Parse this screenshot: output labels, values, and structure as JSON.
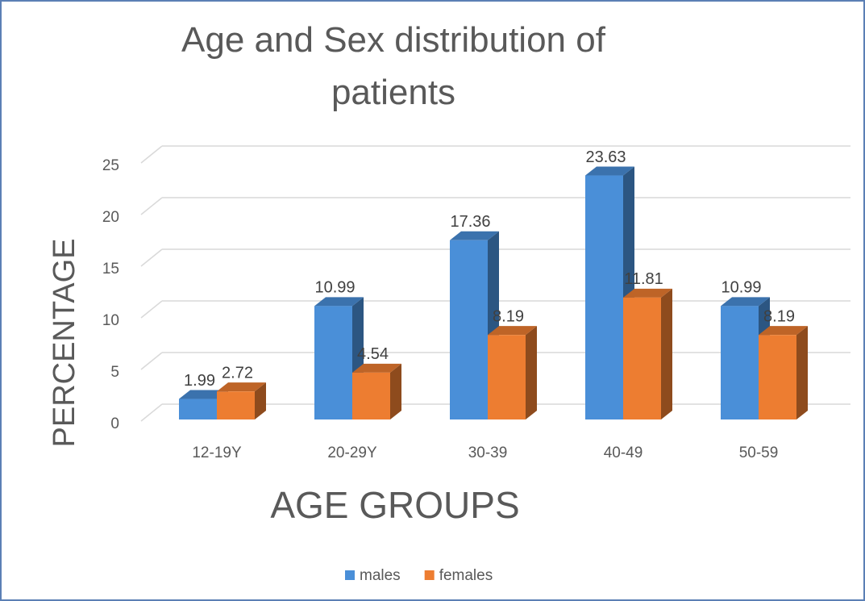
{
  "chart_data": {
    "type": "bar3d",
    "title": "Age and Sex distribution of patients",
    "x_label": "AGE GROUPS",
    "y_label": "PERCENTAGE",
    "categories": [
      "12-19Y",
      "20-29Y",
      "30-39",
      "40-49",
      "50-59"
    ],
    "series": [
      {
        "name": "males",
        "color": "#4a8fd8",
        "values": [
          1.99,
          10.99,
          17.36,
          23.63,
          10.99
        ]
      },
      {
        "name": "females",
        "color": "#ed7d31",
        "values": [
          2.72,
          4.54,
          8.19,
          11.81,
          8.19
        ]
      }
    ],
    "ylim": [
      0,
      25
    ],
    "yticks": [
      0,
      5,
      10,
      15,
      20,
      25
    ],
    "grid": true,
    "legend": "bottom"
  }
}
